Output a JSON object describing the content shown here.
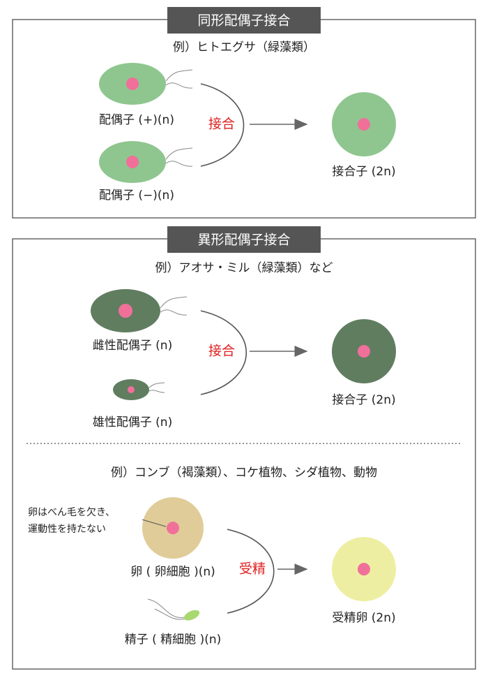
{
  "sections": [
    {
      "title": "同形配偶子接合",
      "example": "例）ヒトエグサ（緑藻類）",
      "gamete_a": "配偶子 (+)(n)",
      "gamete_b": "配偶子 (−)(n)",
      "process": "接合",
      "result": "接合子 (2n)"
    },
    {
      "title": "異形配偶子接合",
      "example": "例）アオサ・ミル（緑藻類）など",
      "gamete_a": "雌性配偶子 (n)",
      "gamete_b": "雄性配偶子 (n)",
      "process": "接合",
      "result": "接合子 (2n)",
      "example2": "例）コンブ（褐藻類）、コケ植物、シダ植物、動物",
      "note": [
        "卵はべん毛を欠き、",
        "運動性を持たない"
      ],
      "egg": "卵 ( 卵細胞 )(n)",
      "sperm": "精子 ( 精細胞 )(n)",
      "process2": "受精",
      "result2": "受精卵 (2n)"
    }
  ]
}
